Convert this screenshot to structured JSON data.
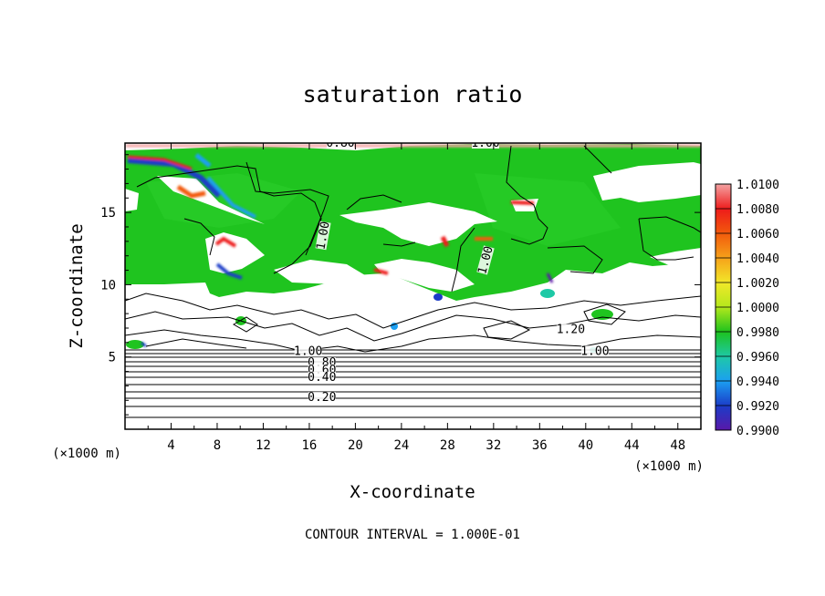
{
  "chart_data": {
    "type": "heatmap",
    "title": "saturation ratio",
    "xlabel": "X-coordinate",
    "ylabel": "Z-coordinate",
    "x_unit": "(×1000 m)",
    "y_unit": "(×1000 m)",
    "xlim": [
      0,
      50
    ],
    "ylim": [
      0,
      19.8
    ],
    "x_ticks": [
      4,
      8,
      12,
      16,
      20,
      24,
      28,
      32,
      36,
      40,
      44,
      48
    ],
    "y_ticks": [
      5,
      10,
      15
    ],
    "color_scale": {
      "levels": [
        "1.0100",
        "1.0080",
        "1.0060",
        "1.0040",
        "1.0020",
        "1.0000",
        "0.9980",
        "0.9960",
        "0.9940",
        "0.9920",
        "0.9900"
      ],
      "colors": [
        "#f4a3a3",
        "#ee1b1b",
        "#f25a0c",
        "#f6a21a",
        "#f2e829",
        "#b3e81c",
        "#1dc21d",
        "#1ec9a6",
        "#1b9ff2",
        "#1b3cc8",
        "#5a18a8"
      ]
    },
    "contour_labels": [
      {
        "text": "0.80",
        "x": 18.7,
        "y": 19.8
      },
      {
        "text": "1.00",
        "x": 31.3,
        "y": 19.8
      },
      {
        "text": "1.00",
        "x": 17.2,
        "y": 13.4,
        "rotate": -80
      },
      {
        "text": "1.00",
        "x": 31.3,
        "y": 11.7,
        "rotate": -75
      },
      {
        "text": "1.20",
        "x": 38.7,
        "y": 6.9
      },
      {
        "text": "1.00",
        "x": 40.8,
        "y": 5.4
      },
      {
        "text": "1.00",
        "x": 15.9,
        "y": 5.4
      },
      {
        "text": "0.80",
        "x": 17.1,
        "y": 4.6
      },
      {
        "text": "0.60",
        "x": 17.1,
        "y": 4.1
      },
      {
        "text": "0.40",
        "x": 17.1,
        "y": 3.6
      },
      {
        "text": "0.20",
        "x": 17.1,
        "y": 2.2
      }
    ],
    "contour_levels_bottom": [
      0.2,
      0.4,
      0.6,
      0.8,
      1.0
    ],
    "contour_interval_text": "CONTOUR INTERVAL = 1.000E-01"
  }
}
